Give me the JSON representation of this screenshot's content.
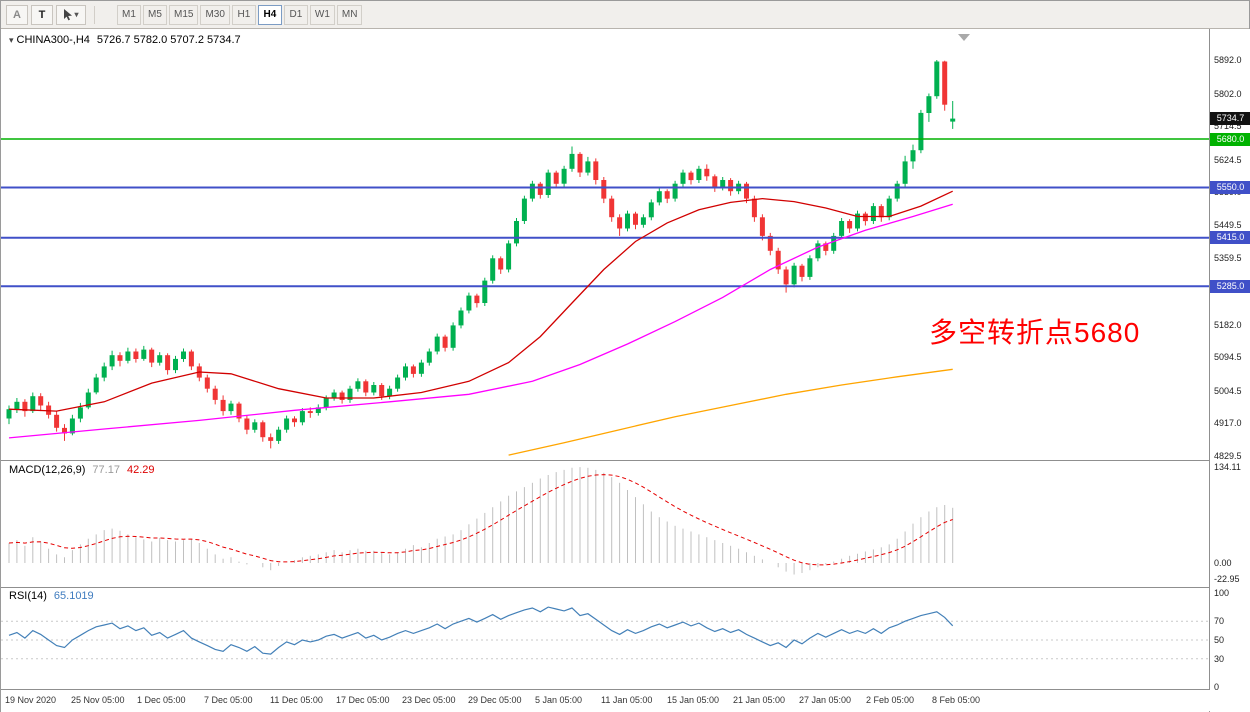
{
  "toolbar": {
    "tool_buttons": [
      "A",
      "T"
    ],
    "timeframes": [
      "M1",
      "M5",
      "M15",
      "M30",
      "H1",
      "H4",
      "D1",
      "W1",
      "MN"
    ],
    "active_timeframe": "H4"
  },
  "chart": {
    "symbol_label": "CHINA300-,H4",
    "ohlc_text": "5726.7 5782.0 5707.2 5734.7",
    "annotation": "多空转折点5680",
    "annotation_color": "#ff0000",
    "price_axis_ticks": [
      "5892.0",
      "5802.0",
      "5714.5",
      "5624.5",
      "5539.0",
      "5449.5",
      "5359.5",
      "5182.0",
      "5094.5",
      "5004.5",
      "4917.0",
      "4829.5"
    ],
    "price_badges": [
      {
        "text": "5734.7",
        "price": 5734.7,
        "bg": "#111111"
      },
      {
        "text": "5680.0",
        "price": 5680,
        "bg": "#00b200"
      },
      {
        "text": "5550.0",
        "price": 5550,
        "bg": "#4050c8"
      },
      {
        "text": "5415.0",
        "price": 5415,
        "bg": "#4050c8"
      },
      {
        "text": "5285.0",
        "price": 5285,
        "bg": "#4050c8"
      }
    ]
  },
  "macd": {
    "name": "MACD(12,26,9)",
    "value_main": "77.17",
    "value_signal": "42.29",
    "axis_ticks": [
      {
        "text": "134.11",
        "value": 134.11
      },
      {
        "text": "0.00",
        "value": 0
      },
      {
        "text": "-22.95",
        "value": -22.95
      }
    ]
  },
  "rsi": {
    "name": "RSI(14)",
    "value": "65.1019",
    "axis_ticks": [
      {
        "text": "100",
        "value": 100
      },
      {
        "text": "70",
        "value": 70
      },
      {
        "text": "50",
        "value": 50
      },
      {
        "text": "30",
        "value": 30
      },
      {
        "text": "0",
        "value": 0
      }
    ]
  },
  "time_axis": [
    "19 Nov 2020",
    "25 Nov 05:00",
    "1 Dec 05:00",
    "7 Dec 05:00",
    "11 Dec 05:00",
    "17 Dec 05:00",
    "23 Dec 05:00",
    "29 Dec 05:00",
    "5 Jan 05:00",
    "11 Jan 05:00",
    "15 Jan 05:00",
    "21 Jan 05:00",
    "27 Jan 05:00",
    "2 Feb 05:00",
    "8 Feb 05:00"
  ],
  "chart_data": {
    "type": "candlestick",
    "symbol": "CHINA300-",
    "timeframe": "H4",
    "current_ohlc": {
      "open": 5726.7,
      "high": 5782.0,
      "low": 5707.2,
      "close": 5734.7
    },
    "price_range": [
      4829.5,
      5892.0
    ],
    "colors": {
      "up": "#00b050",
      "down": "#f03535"
    },
    "candles": [
      [
        4930,
        4965,
        4915,
        4955
      ],
      [
        4955,
        4985,
        4945,
        4975
      ],
      [
        4975,
        4982,
        4935,
        4950
      ],
      [
        4950,
        5000,
        4945,
        4990
      ],
      [
        4990,
        4998,
        4950,
        4965
      ],
      [
        4965,
        4975,
        4930,
        4940
      ],
      [
        4940,
        4950,
        4895,
        4905
      ],
      [
        4905,
        4915,
        4870,
        4890
      ],
      [
        4890,
        4940,
        4885,
        4930
      ],
      [
        4930,
        4972,
        4920,
        4960
      ],
      [
        4960,
        5010,
        4955,
        5000
      ],
      [
        5000,
        5050,
        4995,
        5040
      ],
      [
        5040,
        5080,
        5030,
        5070
      ],
      [
        5070,
        5112,
        5060,
        5100
      ],
      [
        5100,
        5108,
        5070,
        5085
      ],
      [
        5085,
        5120,
        5078,
        5110
      ],
      [
        5110,
        5118,
        5080,
        5090
      ],
      [
        5090,
        5125,
        5085,
        5115
      ],
      [
        5115,
        5120,
        5068,
        5080
      ],
      [
        5080,
        5108,
        5072,
        5100
      ],
      [
        5100,
        5105,
        5048,
        5060
      ],
      [
        5060,
        5098,
        5052,
        5090
      ],
      [
        5090,
        5118,
        5082,
        5110
      ],
      [
        5110,
        5115,
        5060,
        5070
      ],
      [
        5070,
        5078,
        5030,
        5040
      ],
      [
        5040,
        5048,
        5000,
        5010
      ],
      [
        5010,
        5018,
        4968,
        4980
      ],
      [
        4980,
        4992,
        4938,
        4950
      ],
      [
        4950,
        4978,
        4940,
        4970
      ],
      [
        4970,
        4975,
        4920,
        4930
      ],
      [
        4930,
        4938,
        4888,
        4900
      ],
      [
        4900,
        4928,
        4892,
        4920
      ],
      [
        4920,
        4925,
        4868,
        4880
      ],
      [
        4880,
        4890,
        4850,
        4870
      ],
      [
        4870,
        4908,
        4862,
        4900
      ],
      [
        4900,
        4938,
        4892,
        4930
      ],
      [
        4930,
        4936,
        4908,
        4920
      ],
      [
        4920,
        4958,
        4912,
        4950
      ],
      [
        4950,
        4960,
        4932,
        4945
      ],
      [
        4945,
        4968,
        4938,
        4960
      ],
      [
        4960,
        4992,
        4952,
        4985
      ],
      [
        4985,
        5008,
        4978,
        5000
      ],
      [
        5000,
        5005,
        4970,
        4980
      ],
      [
        4980,
        5018,
        4972,
        5010
      ],
      [
        5010,
        5038,
        5002,
        5030
      ],
      [
        5030,
        5035,
        4990,
        5000
      ],
      [
        5000,
        5028,
        4992,
        5020
      ],
      [
        5020,
        5025,
        4980,
        4990
      ],
      [
        4990,
        5018,
        4982,
        5010
      ],
      [
        5010,
        5048,
        5002,
        5040
      ],
      [
        5040,
        5078,
        5032,
        5070
      ],
      [
        5070,
        5075,
        5040,
        5050
      ],
      [
        5050,
        5088,
        5042,
        5080
      ],
      [
        5080,
        5118,
        5072,
        5110
      ],
      [
        5110,
        5158,
        5102,
        5150
      ],
      [
        5150,
        5155,
        5110,
        5120
      ],
      [
        5120,
        5188,
        5112,
        5180
      ],
      [
        5180,
        5228,
        5172,
        5220
      ],
      [
        5220,
        5268,
        5212,
        5260
      ],
      [
        5260,
        5265,
        5228,
        5240
      ],
      [
        5240,
        5308,
        5232,
        5300
      ],
      [
        5300,
        5368,
        5292,
        5360
      ],
      [
        5360,
        5365,
        5318,
        5330
      ],
      [
        5330,
        5408,
        5322,
        5400
      ],
      [
        5400,
        5468,
        5392,
        5460
      ],
      [
        5460,
        5528,
        5452,
        5520
      ],
      [
        5520,
        5568,
        5512,
        5560
      ],
      [
        5560,
        5565,
        5520,
        5530
      ],
      [
        5530,
        5598,
        5522,
        5590
      ],
      [
        5590,
        5595,
        5548,
        5560
      ],
      [
        5560,
        5608,
        5552,
        5600
      ],
      [
        5600,
        5660,
        5592,
        5640
      ],
      [
        5640,
        5645,
        5578,
        5590
      ],
      [
        5590,
        5632,
        5582,
        5620
      ],
      [
        5620,
        5628,
        5558,
        5570
      ],
      [
        5570,
        5578,
        5508,
        5520
      ],
      [
        5520,
        5528,
        5458,
        5470
      ],
      [
        5470,
        5478,
        5420,
        5440
      ],
      [
        5440,
        5488,
        5432,
        5480
      ],
      [
        5480,
        5485,
        5438,
        5450
      ],
      [
        5450,
        5478,
        5442,
        5470
      ],
      [
        5470,
        5518,
        5462,
        5510
      ],
      [
        5510,
        5548,
        5502,
        5540
      ],
      [
        5540,
        5545,
        5508,
        5520
      ],
      [
        5520,
        5568,
        5512,
        5560
      ],
      [
        5560,
        5598,
        5552,
        5590
      ],
      [
        5590,
        5595,
        5558,
        5570
      ],
      [
        5570,
        5608,
        5562,
        5600
      ],
      [
        5600,
        5612,
        5568,
        5580
      ],
      [
        5580,
        5585,
        5538,
        5550
      ],
      [
        5550,
        5578,
        5542,
        5570
      ],
      [
        5570,
        5575,
        5528,
        5540
      ],
      [
        5540,
        5568,
        5532,
        5560
      ],
      [
        5560,
        5565,
        5508,
        5520
      ],
      [
        5520,
        5528,
        5458,
        5470
      ],
      [
        5470,
        5478,
        5408,
        5420
      ],
      [
        5420,
        5428,
        5368,
        5380
      ],
      [
        5380,
        5388,
        5318,
        5330
      ],
      [
        5330,
        5338,
        5268,
        5290
      ],
      [
        5290,
        5348,
        5282,
        5340
      ],
      [
        5340,
        5345,
        5298,
        5310
      ],
      [
        5310,
        5368,
        5302,
        5360
      ],
      [
        5360,
        5408,
        5352,
        5400
      ],
      [
        5400,
        5405,
        5368,
        5380
      ],
      [
        5380,
        5428,
        5372,
        5420
      ],
      [
        5420,
        5468,
        5412,
        5460
      ],
      [
        5460,
        5465,
        5428,
        5440
      ],
      [
        5440,
        5488,
        5432,
        5480
      ],
      [
        5480,
        5485,
        5448,
        5460
      ],
      [
        5460,
        5508,
        5452,
        5500
      ],
      [
        5500,
        5505,
        5458,
        5470
      ],
      [
        5470,
        5528,
        5462,
        5520
      ],
      [
        5520,
        5568,
        5512,
        5560
      ],
      [
        5560,
        5635,
        5552,
        5620
      ],
      [
        5620,
        5665,
        5600,
        5650
      ],
      [
        5650,
        5758,
        5642,
        5750
      ],
      [
        5750,
        5802,
        5726,
        5795
      ],
      [
        5795,
        5892,
        5788,
        5888
      ],
      [
        5888,
        5890,
        5756,
        5772
      ],
      [
        5726.7,
        5782,
        5707.2,
        5734.7
      ]
    ],
    "horizontal_levels": [
      {
        "price": 5680,
        "color": "#00b200",
        "stroke_width": 1.6
      },
      {
        "price": 5550,
        "color": "#4050c8",
        "stroke_width": 2
      },
      {
        "price": 5415,
        "color": "#4050c8",
        "stroke_width": 2
      },
      {
        "price": 5285,
        "color": "#4050c8",
        "stroke_width": 2
      }
    ],
    "moving_averages": [
      {
        "name": "ma-fast",
        "color": "#d10000",
        "points": [
          [
            0,
            4955
          ],
          [
            6,
            4950
          ],
          [
            12,
            4975
          ],
          [
            18,
            5025
          ],
          [
            24,
            5055
          ],
          [
            28,
            5050
          ],
          [
            34,
            5010
          ],
          [
            40,
            4985
          ],
          [
            46,
            4985
          ],
          [
            52,
            5000
          ],
          [
            58,
            5030
          ],
          [
            63,
            5080
          ],
          [
            67,
            5150
          ],
          [
            71,
            5240
          ],
          [
            75,
            5330
          ],
          [
            79,
            5405
          ],
          [
            83,
            5455
          ],
          [
            87,
            5490
          ],
          [
            91,
            5510
          ],
          [
            95,
            5520
          ],
          [
            99,
            5512
          ],
          [
            103,
            5495
          ],
          [
            107,
            5472
          ],
          [
            111,
            5472
          ],
          [
            115,
            5500
          ],
          [
            119,
            5540
          ]
        ]
      },
      {
        "name": "ma-mid",
        "color": "#ff00ff",
        "points": [
          [
            0,
            4878
          ],
          [
            12,
            4902
          ],
          [
            24,
            4925
          ],
          [
            36,
            4952
          ],
          [
            48,
            4975
          ],
          [
            58,
            4995
          ],
          [
            66,
            5030
          ],
          [
            72,
            5075
          ],
          [
            78,
            5130
          ],
          [
            84,
            5190
          ],
          [
            90,
            5255
          ],
          [
            96,
            5330
          ],
          [
            102,
            5390
          ],
          [
            108,
            5435
          ],
          [
            114,
            5472
          ],
          [
            119,
            5505
          ]
        ]
      },
      {
        "name": "ma-slow",
        "color": "#ffa500",
        "points": [
          [
            63,
            4832
          ],
          [
            70,
            4865
          ],
          [
            77,
            4900
          ],
          [
            84,
            4935
          ],
          [
            91,
            4965
          ],
          [
            98,
            4995
          ],
          [
            105,
            5020
          ],
          [
            112,
            5042
          ],
          [
            119,
            5062
          ]
        ]
      }
    ],
    "macd": {
      "params": "12,26,9",
      "histogram_color": "#c0c0c0",
      "signal_color": "#e60000",
      "axis_range": [
        -22.95,
        134.11
      ],
      "histogram": [
        28,
        32,
        24,
        36,
        30,
        20,
        12,
        8,
        18,
        26,
        34,
        40,
        46,
        48,
        45,
        40,
        36,
        33,
        30,
        35,
        32,
        30,
        32,
        34,
        28,
        20,
        12,
        6,
        8,
        2,
        -2,
        0,
        -6,
        -10,
        -4,
        0,
        4,
        8,
        10,
        12,
        15,
        18,
        15,
        18,
        20,
        17,
        17,
        14,
        12,
        15,
        20,
        25,
        22,
        28,
        34,
        37,
        40,
        46,
        54,
        62,
        70,
        78,
        86,
        94,
        100,
        106,
        112,
        118,
        123,
        127,
        130,
        133,
        134,
        133,
        130,
        126,
        120,
        112,
        102,
        92,
        82,
        72,
        64,
        58,
        52,
        48,
        44,
        40,
        36,
        32,
        28,
        24,
        20,
        15,
        10,
        5,
        0,
        -6,
        -12,
        -16,
        -14,
        -10,
        -6,
        -2,
        2,
        6,
        10,
        13,
        16,
        19,
        22,
        26,
        34,
        44,
        55,
        64,
        72,
        78,
        81,
        77.17
      ]
    },
    "rsi": {
      "period": 14,
      "color": "#4380b8",
      "levels": [
        70,
        50,
        30
      ],
      "axis_range": [
        0,
        100
      ],
      "values": [
        55,
        58,
        52,
        60,
        56,
        50,
        44,
        42,
        50,
        55,
        60,
        64,
        66,
        68,
        62,
        65,
        60,
        63,
        55,
        58,
        52,
        56,
        60,
        52,
        48,
        44,
        40,
        38,
        45,
        42,
        38,
        43,
        36,
        35,
        42,
        48,
        45,
        50,
        48,
        50,
        54,
        56,
        52,
        55,
        58,
        52,
        55,
        50,
        53,
        57,
        60,
        57,
        60,
        63,
        67,
        62,
        67,
        70,
        73,
        69,
        73,
        77,
        72,
        76,
        79,
        82,
        84,
        80,
        85,
        83,
        81,
        84,
        76,
        78,
        72,
        66,
        60,
        56,
        61,
        57,
        60,
        64,
        67,
        63,
        66,
        69,
        65,
        68,
        63,
        59,
        62,
        58,
        61,
        56,
        52,
        48,
        44,
        47,
        42,
        50,
        46,
        52,
        57,
        53,
        57,
        61,
        57,
        60,
        57,
        62,
        57,
        63,
        66,
        70,
        73,
        76,
        78,
        80,
        74,
        65.1
      ]
    }
  }
}
